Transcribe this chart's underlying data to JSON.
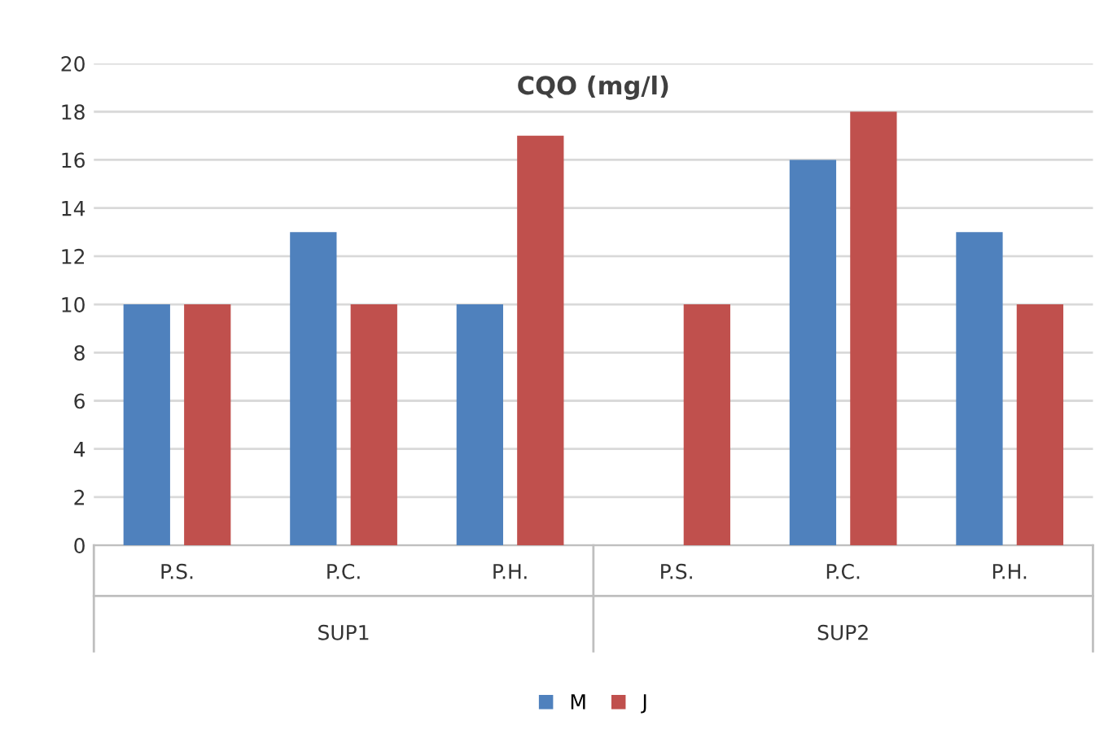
{
  "chart_data": {
    "type": "bar",
    "title": "CQO (mg/l)",
    "categories": [
      "P.S.",
      "P.C.",
      "P.H.",
      "P.S.",
      "P.C.",
      "P.H."
    ],
    "series": [
      {
        "name": "M",
        "color": "#4f81bd",
        "values": [
          10,
          13,
          10,
          null,
          16,
          13
        ]
      },
      {
        "name": "J",
        "color": "#c0504d",
        "values": [
          10,
          10,
          17,
          10,
          18,
          10
        ]
      }
    ],
    "annotations": [
      "SUP1",
      "SUP2"
    ],
    "ylim": [
      0,
      20
    ],
    "yticks": [
      0,
      2,
      4,
      6,
      8,
      10,
      12,
      14,
      16,
      18,
      20
    ],
    "grid": "y",
    "legend": "bottom"
  }
}
